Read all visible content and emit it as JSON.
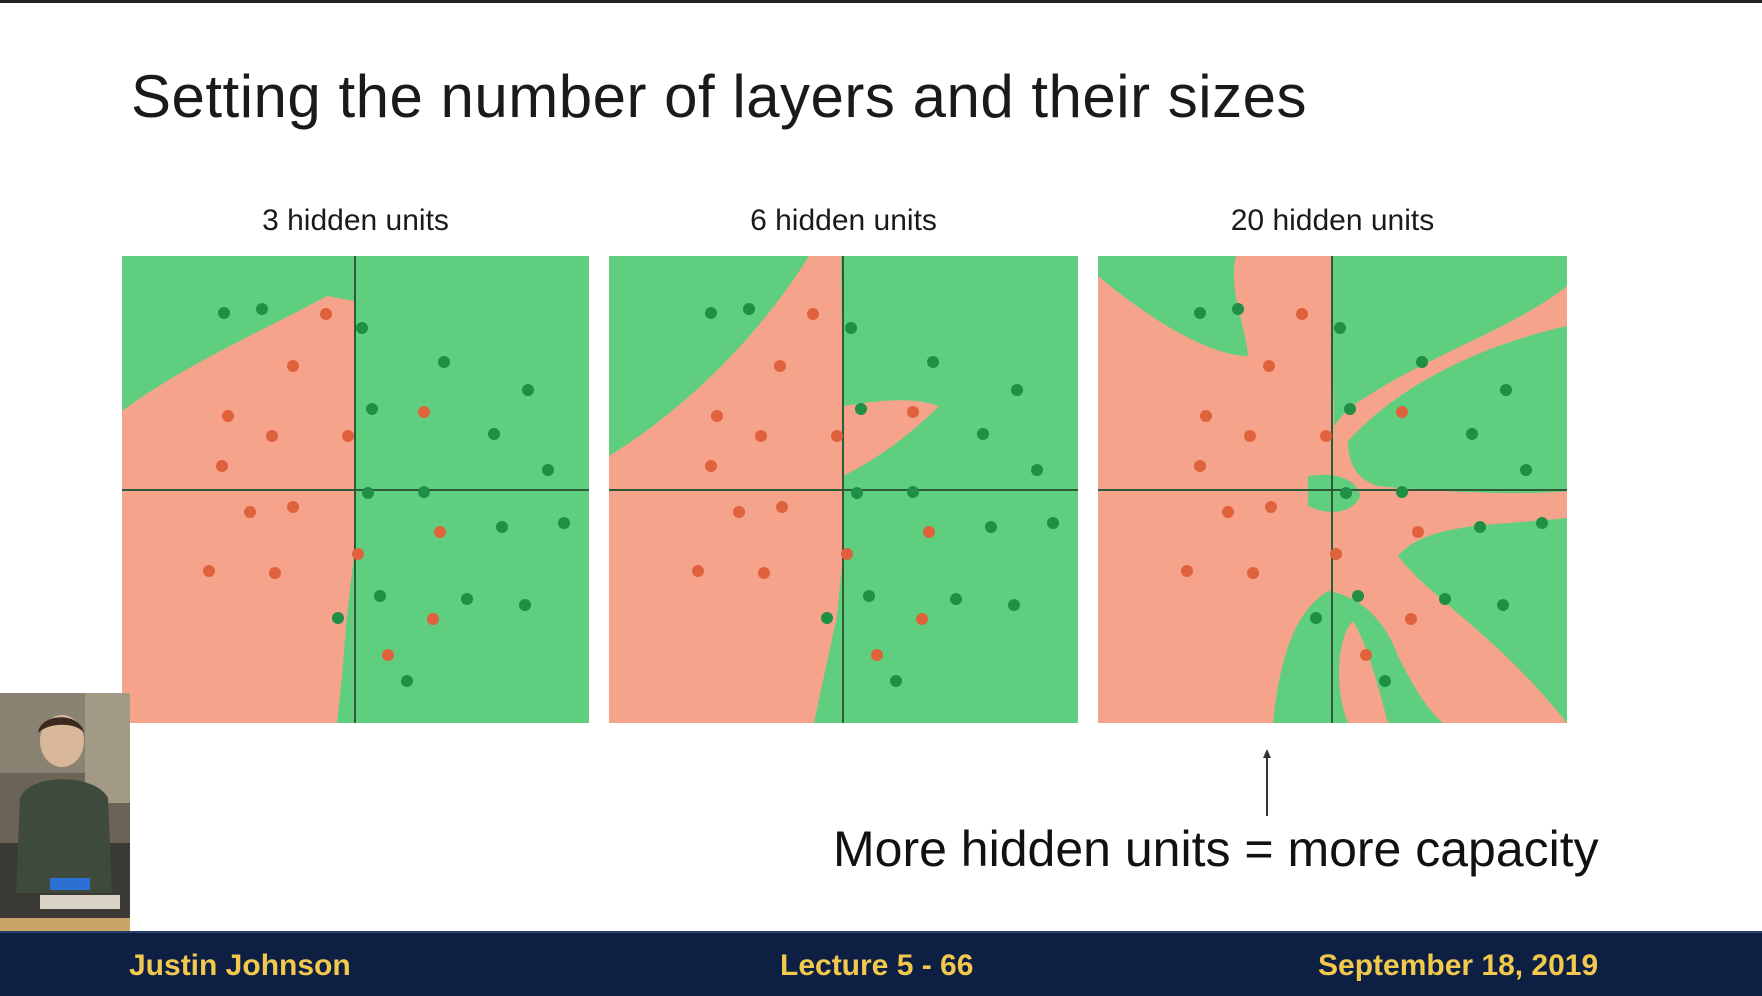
{
  "slide": {
    "title": "Setting the number of layers and their sizes",
    "caption": "More hidden units = more capacity"
  },
  "colors": {
    "green_region": "#5fcf7f",
    "red_region": "#f5a38b",
    "green_point": "#1f8f45",
    "red_point": "#e0623c",
    "footer_bg": "#0d2044",
    "footer_text": "#f2c94c"
  },
  "plots": [
    {
      "label": "3 hidden units"
    },
    {
      "label": "6 hidden units"
    },
    {
      "label": "20 hidden units"
    }
  ],
  "footer": {
    "presenter": "Justin Johnson",
    "lecture": "Lecture 5 - 66",
    "date": "September 18, 2019"
  }
}
